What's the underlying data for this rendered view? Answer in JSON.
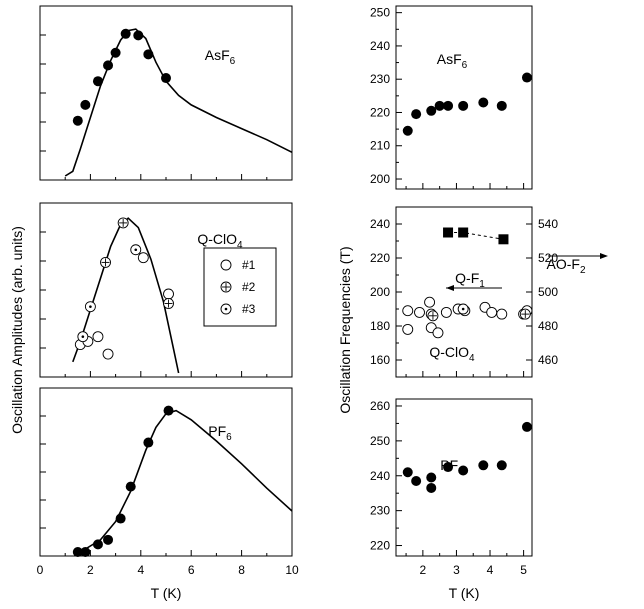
{
  "chart_data": [
    {
      "type": "line",
      "label_main": "AsF",
      "label_sub": "6",
      "x_range": [
        0,
        10
      ],
      "y_ticks_shown": false,
      "theory_curve": {
        "x": [
          1.0,
          1.3,
          1.6,
          2.0,
          2.4,
          2.8,
          3.2,
          3.5,
          3.8,
          4.2,
          4.6,
          5.0,
          5.5,
          6.0,
          7.0,
          8.0,
          9.0,
          10.0
        ],
        "y": [
          0.0,
          0.03,
          0.17,
          0.37,
          0.57,
          0.73,
          0.86,
          0.92,
          0.93,
          0.87,
          0.72,
          0.6,
          0.51,
          0.45,
          0.37,
          0.3,
          0.23,
          0.15
        ]
      },
      "points": {
        "x": [
          1.5,
          1.8,
          2.3,
          2.7,
          3.0,
          3.4,
          3.9,
          4.3,
          5.0
        ],
        "y": [
          0.35,
          0.45,
          0.6,
          0.7,
          0.78,
          0.9,
          0.89,
          0.77,
          0.62
        ]
      }
    },
    {
      "type": "scatter",
      "label_main": "Q-ClO",
      "label_sub": "4",
      "x_range": [
        0,
        10
      ],
      "y_ticks_shown": false,
      "theory_curve": {
        "x": [
          1.3,
          1.6,
          2.0,
          2.4,
          2.8,
          3.2,
          3.5,
          3.9,
          4.4,
          4.9,
          5.3,
          5.5
        ],
        "y": [
          0.07,
          0.2,
          0.4,
          0.6,
          0.8,
          0.94,
          0.98,
          0.92,
          0.72,
          0.45,
          0.15,
          0.0
        ]
      },
      "series": [
        {
          "name": "#1",
          "marker": "open-circle",
          "x": [
            1.6,
            1.9,
            2.3,
            2.7,
            4.1,
            5.1
          ],
          "y": [
            0.18,
            0.2,
            0.23,
            0.12,
            0.73,
            0.5
          ]
        },
        {
          "name": "#2",
          "marker": "plus-circle",
          "x": [
            2.6,
            3.3,
            5.1
          ],
          "y": [
            0.7,
            0.95,
            0.44
          ]
        },
        {
          "name": "#3",
          "marker": "dot-circle",
          "x": [
            1.7,
            2.0,
            3.8
          ],
          "y": [
            0.23,
            0.42,
            0.78
          ]
        }
      ],
      "legend_entries": [
        "#1",
        "#2",
        "#3"
      ],
      "legend_position": "right"
    },
    {
      "type": "line",
      "label_main": "PF",
      "label_sub": "6",
      "x_range": [
        0,
        10
      ],
      "x_ticks": [
        0,
        2,
        4,
        6,
        8,
        10
      ],
      "xlabel": "T (K)",
      "y_ticks_shown": false,
      "theory_curve": {
        "x": [
          1.4,
          1.8,
          2.4,
          3.0,
          3.6,
          4.2,
          4.6,
          5.0,
          5.4,
          6.0,
          7.0,
          8.0,
          9.0,
          10.0
        ],
        "y": [
          0.0,
          0.02,
          0.08,
          0.2,
          0.4,
          0.67,
          0.82,
          0.91,
          0.93,
          0.87,
          0.73,
          0.58,
          0.42,
          0.27
        ]
      },
      "points": {
        "x": [
          1.5,
          1.8,
          2.3,
          2.7,
          3.2,
          3.6,
          4.3,
          5.1
        ],
        "y": [
          0.0,
          0.0,
          0.05,
          0.08,
          0.22,
          0.43,
          0.72,
          0.93
        ]
      }
    },
    {
      "type": "scatter",
      "label_main": "AsF",
      "label_sub": "6",
      "x_range": [
        1.2,
        5.25
      ],
      "y_range": [
        197,
        252
      ],
      "y_ticks": [
        200,
        210,
        220,
        230,
        240,
        250
      ],
      "points": {
        "x": [
          1.55,
          1.8,
          2.25,
          2.5,
          2.75,
          3.2,
          3.8,
          4.35,
          5.1
        ],
        "y": [
          214.5,
          219.5,
          220.5,
          222.0,
          222.0,
          222.0,
          223.0,
          222.0,
          230.5
        ]
      }
    },
    {
      "type": "scatter",
      "label_main": "Q-ClO",
      "label_sub": "4",
      "x_range": [
        1.2,
        5.25
      ],
      "y_range": [
        150,
        250
      ],
      "y_ticks": [
        160,
        180,
        200,
        220,
        240
      ],
      "y2_range": [
        450,
        550
      ],
      "y2_ticks": [
        460,
        480,
        500,
        520,
        540
      ],
      "annotations": [
        {
          "text": "Q-F",
          "sub": "1",
          "arrow": "left"
        },
        {
          "text": "AO-F",
          "sub": "2",
          "arrow": "right"
        }
      ],
      "series": [
        {
          "name": "Q-F1",
          "marker": "open-circle",
          "x": [
            1.55,
            1.55,
            1.9,
            2.2,
            2.25,
            2.25,
            2.45,
            2.7,
            3.05,
            3.25,
            3.85,
            4.05,
            4.35,
            5.0,
            5.1
          ],
          "y": [
            189,
            178,
            188,
            194,
            187,
            179,
            176,
            188,
            190,
            189,
            191,
            188,
            187,
            187,
            189
          ]
        },
        {
          "name": "Q-F1 (#2)",
          "marker": "plus-circle",
          "x": [
            2.3,
            5.05
          ],
          "y": [
            186,
            187
          ]
        },
        {
          "name": "Q-F1 (#3)",
          "marker": "dot-circle",
          "x": [
            3.2
          ],
          "y": [
            190
          ]
        },
        {
          "name": "AO-F2",
          "marker": "filled-square",
          "axis": "right",
          "x": [
            2.75,
            3.2,
            4.4
          ],
          "y": [
            535,
            535,
            531
          ]
        }
      ]
    },
    {
      "type": "scatter",
      "label_main": "PF",
      "label_sub": "6",
      "x_range": [
        1.2,
        5.25
      ],
      "x_ticks": [
        2,
        3,
        4,
        5
      ],
      "xlabel": "T (K)",
      "y_range": [
        217,
        262
      ],
      "y_ticks": [
        220,
        230,
        240,
        250,
        260
      ],
      "points": {
        "x": [
          1.55,
          1.8,
          2.25,
          2.25,
          2.75,
          3.2,
          3.8,
          4.35,
          5.1
        ],
        "y": [
          241.0,
          238.5,
          239.5,
          236.5,
          242.5,
          241.5,
          243.0,
          243.0,
          254.0
        ]
      }
    }
  ],
  "ylabel_left": "Oscillation Amplitudes (arb. units)",
  "ylabel_right": "Oscillation Frequencies (T)"
}
